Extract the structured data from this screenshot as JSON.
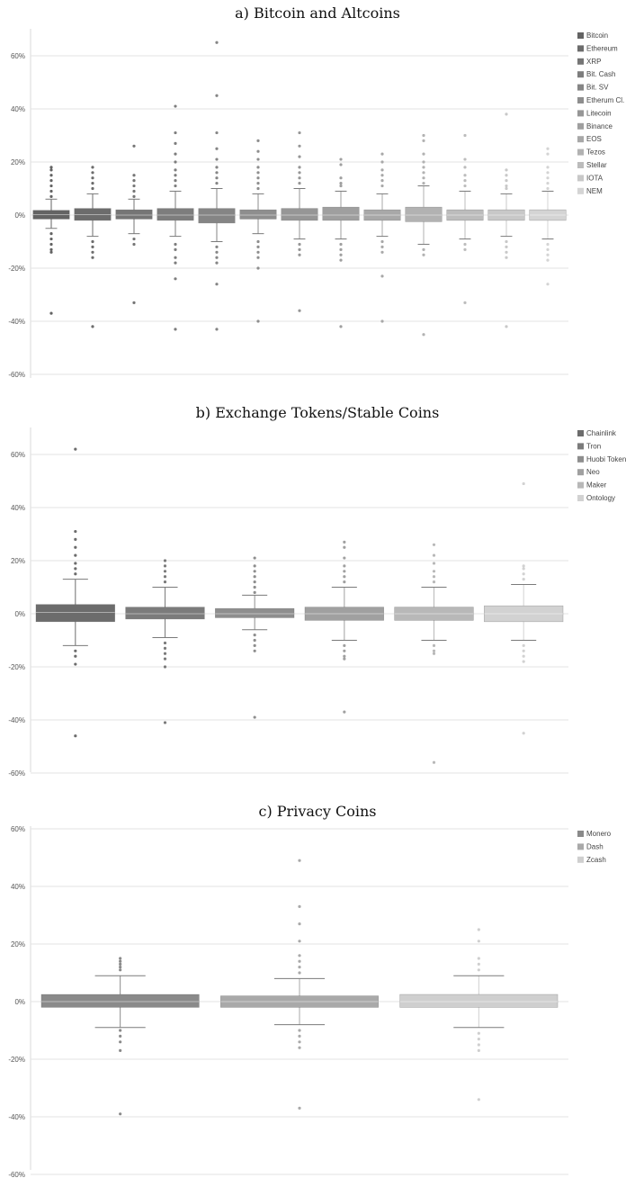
{
  "chart_data": [
    {
      "type": "box",
      "title": "a) Bitcoin and Altcoins",
      "ylim": [
        -60,
        60
      ],
      "yticks": [
        60,
        40,
        20,
        0,
        -20,
        -40,
        -60
      ],
      "ytick_labels": [
        "60%",
        "40%",
        "20%",
        "0%",
        "-20%",
        "-40%",
        "-60%"
      ],
      "legend_position": "right",
      "grid": true,
      "series": [
        {
          "name": "Bitcoin",
          "color": "#636363",
          "q1": -1.5,
          "median": 0.2,
          "q3": 1.8,
          "whisker_low": -5,
          "whisker_high": 6,
          "outliers": [
            18,
            17,
            15,
            13,
            11,
            9,
            7,
            -7,
            -9,
            -11,
            -13,
            -14,
            -37
          ]
        },
        {
          "name": "Ethereum",
          "color": "#6c6c6c",
          "q1": -2.0,
          "median": 0.2,
          "q3": 2.5,
          "whisker_low": -8,
          "whisker_high": 8,
          "outliers": [
            18,
            16,
            14,
            12,
            10,
            -10,
            -12,
            -14,
            -16,
            -42
          ]
        },
        {
          "name": "XRP",
          "color": "#757575",
          "q1": -1.5,
          "median": 0.0,
          "q3": 2.0,
          "whisker_low": -7,
          "whisker_high": 6,
          "outliers": [
            26,
            15,
            13,
            11,
            9,
            7,
            -9,
            -11,
            -33
          ]
        },
        {
          "name": "Bit. Cash",
          "color": "#7d7d7d",
          "q1": -2.0,
          "median": 0.0,
          "q3": 2.5,
          "whisker_low": -8,
          "whisker_high": 9,
          "outliers": [
            41,
            31,
            27,
            23,
            20,
            17,
            15,
            13,
            11,
            -11,
            -13,
            -16,
            -18,
            -24,
            -43
          ]
        },
        {
          "name": "Bit. SV",
          "color": "#858585",
          "q1": -3.0,
          "median": 0.0,
          "q3": 2.5,
          "whisker_low": -10,
          "whisker_high": 10,
          "outliers": [
            65,
            45,
            31,
            25,
            21,
            18,
            16,
            14,
            12,
            -12,
            -14,
            -16,
            -18,
            -26,
            -43
          ]
        },
        {
          "name": "Etherum Cl.",
          "color": "#8e8e8e",
          "q1": -1.5,
          "median": 0.0,
          "q3": 2.0,
          "whisker_low": -7,
          "whisker_high": 8,
          "outliers": [
            28,
            24,
            21,
            18,
            16,
            14,
            12,
            10,
            -10,
            -12,
            -14,
            -16,
            -20,
            -40
          ]
        },
        {
          "name": "Litecoin",
          "color": "#969696",
          "q1": -2.0,
          "median": 0.0,
          "q3": 2.5,
          "whisker_low": -9,
          "whisker_high": 10,
          "outliers": [
            31,
            26,
            22,
            18,
            16,
            14,
            12,
            -11,
            -13,
            -15,
            -36
          ]
        },
        {
          "name": "Binance",
          "color": "#9f9f9f",
          "q1": -2.0,
          "median": 0.0,
          "q3": 3.0,
          "whisker_low": -9,
          "whisker_high": 9,
          "outliers": [
            21,
            19,
            14,
            12,
            11,
            -11,
            -13,
            -15,
            -17,
            -42
          ]
        },
        {
          "name": "EOS",
          "color": "#a8a8a8",
          "q1": -2.0,
          "median": 0.0,
          "q3": 2.0,
          "whisker_low": -8,
          "whisker_high": 8,
          "outliers": [
            23,
            20,
            17,
            15,
            13,
            11,
            -10,
            -12,
            -14,
            -23,
            -40
          ]
        },
        {
          "name": "Tezos",
          "color": "#b2b2b2",
          "q1": -2.5,
          "median": 0.0,
          "q3": 3.0,
          "whisker_low": -11,
          "whisker_high": 11,
          "outliers": [
            30,
            28,
            23,
            20,
            18,
            16,
            14,
            12,
            -13,
            -15,
            -45
          ]
        },
        {
          "name": "Stellar",
          "color": "#bcbcbc",
          "q1": -2.0,
          "median": 0.0,
          "q3": 2.0,
          "whisker_low": -9,
          "whisker_high": 9,
          "outliers": [
            30,
            21,
            18,
            15,
            13,
            11,
            -11,
            -13,
            -33
          ]
        },
        {
          "name": "IOTA",
          "color": "#c8c8c8",
          "q1": -2.0,
          "median": 0.0,
          "q3": 2.0,
          "whisker_low": -8,
          "whisker_high": 8,
          "outliers": [
            38,
            17,
            15,
            13,
            11,
            10,
            -10,
            -12,
            -14,
            -16,
            -42
          ]
        },
        {
          "name": "NEM",
          "color": "#d4d4d4",
          "q1": -2.0,
          "median": 0.0,
          "q3": 2.0,
          "whisker_low": -9,
          "whisker_high": 9,
          "outliers": [
            25,
            23,
            18,
            16,
            14,
            12,
            10,
            -11,
            -13,
            -15,
            -17,
            -26
          ]
        }
      ]
    },
    {
      "type": "box",
      "title": "b) Exchange Tokens/Stable Coins",
      "ylim": [
        -60,
        70
      ],
      "yticks": [
        60,
        40,
        20,
        0,
        -20,
        -40,
        -60
      ],
      "ytick_labels": [
        "60%",
        "40%",
        "20%",
        "0%",
        "-20%",
        "-40%",
        "-60%"
      ],
      "legend_position": "right",
      "grid": true,
      "series": [
        {
          "name": "Chainlink",
          "color": "#6c6c6c",
          "q1": -3.0,
          "median": 0.5,
          "q3": 3.5,
          "whisker_low": -12,
          "whisker_high": 13,
          "outliers": [
            62,
            31,
            28,
            25,
            22,
            19,
            17,
            15,
            -14,
            -16,
            -19,
            -46
          ]
        },
        {
          "name": "Tron",
          "color": "#7b7b7b",
          "q1": -2.0,
          "median": 0.0,
          "q3": 2.5,
          "whisker_low": -9,
          "whisker_high": 10,
          "outliers": [
            20,
            18,
            16,
            14,
            12,
            -11,
            -13,
            -15,
            -17,
            -20,
            -41
          ]
        },
        {
          "name": "Huobi Token",
          "color": "#8e8e8e",
          "q1": -1.5,
          "median": 0.0,
          "q3": 2.0,
          "whisker_low": -6,
          "whisker_high": 7,
          "outliers": [
            21,
            18,
            16,
            14,
            12,
            10,
            8,
            -8,
            -10,
            -12,
            -14,
            -39
          ]
        },
        {
          "name": "Neo",
          "color": "#a0a0a0",
          "q1": -2.5,
          "median": 0.0,
          "q3": 2.5,
          "whisker_low": -10,
          "whisker_high": 10,
          "outliers": [
            27,
            25,
            21,
            18,
            16,
            14,
            12,
            -12,
            -14,
            -16,
            -17,
            -37
          ]
        },
        {
          "name": "Maker",
          "color": "#b8b8b8",
          "q1": -2.5,
          "median": 0.0,
          "q3": 2.5,
          "whisker_low": -10,
          "whisker_high": 10,
          "outliers": [
            26,
            22,
            19,
            16,
            14,
            12,
            -12,
            -14,
            -15,
            -56
          ]
        },
        {
          "name": "Ontology",
          "color": "#d2d2d2",
          "q1": -3.0,
          "median": 0.0,
          "q3": 3.0,
          "whisker_low": -10,
          "whisker_high": 11,
          "outliers": [
            49,
            18,
            17,
            15,
            13,
            -12,
            -14,
            -16,
            -18,
            -45
          ]
        }
      ]
    },
    {
      "type": "box",
      "title": "c) Privacy Coins",
      "ylim": [
        -60,
        60
      ],
      "yticks": [
        60,
        40,
        20,
        0,
        -20,
        -40,
        -60
      ],
      "ytick_labels": [
        "60%",
        "40%",
        "20%",
        "0%",
        "-20%",
        "-40%",
        "-60%"
      ],
      "legend_position": "right",
      "grid": true,
      "series": [
        {
          "name": "Monero",
          "color": "#8a8a8a",
          "q1": -2.0,
          "median": 0.0,
          "q3": 2.5,
          "whisker_low": -9,
          "whisker_high": 9,
          "outliers": [
            15,
            14,
            13,
            12,
            11,
            -10,
            -12,
            -14,
            -17,
            -39
          ]
        },
        {
          "name": "Dash",
          "color": "#a9a9a9",
          "q1": -2.0,
          "median": 0.0,
          "q3": 2.0,
          "whisker_low": -8,
          "whisker_high": 8,
          "outliers": [
            49,
            33,
            27,
            21,
            16,
            14,
            12,
            10,
            -10,
            -12,
            -14,
            -16,
            -37
          ]
        },
        {
          "name": "Zcash",
          "color": "#cfcfcf",
          "q1": -2.0,
          "median": 0.0,
          "q3": 2.5,
          "whisker_low": -9,
          "whisker_high": 9,
          "outliers": [
            25,
            21,
            15,
            13,
            11,
            -11,
            -13,
            -15,
            -17,
            -34
          ]
        }
      ]
    }
  ]
}
